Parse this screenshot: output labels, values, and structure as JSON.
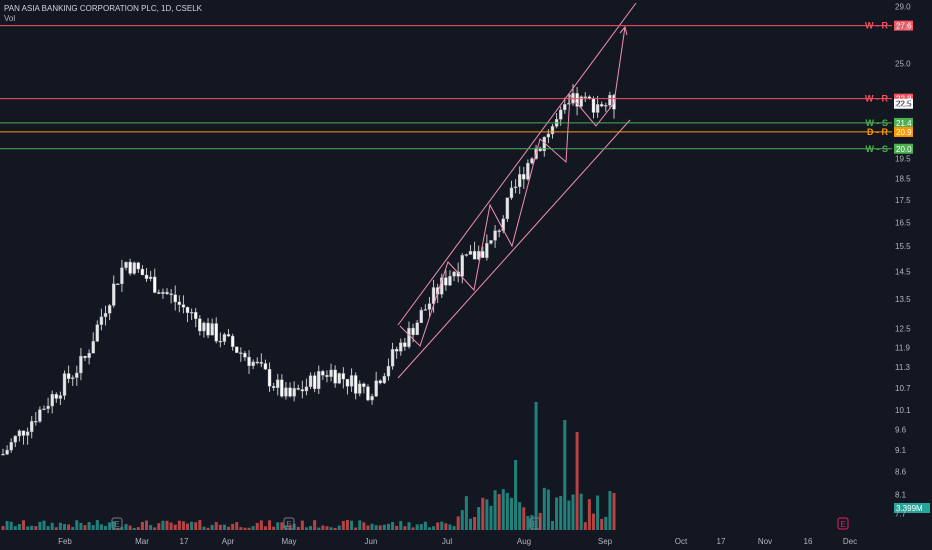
{
  "header": {
    "symbol_line": "PAN ASIA BANKING CORPORATION PLC, 1D, CSELK",
    "volume_label": "Vol"
  },
  "colors": {
    "background": "#131722",
    "up_candle": "#e6e6e6",
    "down_candle": "#ffffff",
    "volume_up": "#26a69a",
    "volume_down": "#ef5350",
    "resistance": "#f7525f",
    "support": "#4caf50",
    "daily_resistance": "#ff9800",
    "channel": "#f48fb1",
    "earnings_marker": "#787b86",
    "earnings_marker_upcoming": "#e91e63"
  },
  "chart_data": {
    "type": "candlestick",
    "price_axis": {
      "scale": "log",
      "ticks": [
        "29.0",
        "27.5",
        "25.0",
        "22.5",
        "19.5",
        "18.5",
        "17.5",
        "16.5",
        "15.5",
        "14.5",
        "13.5",
        "12.5",
        "11.9",
        "11.3",
        "10.7",
        "10.1",
        "9.6",
        "9.1",
        "8.6",
        "8.1",
        "7.7"
      ]
    },
    "time_axis": {
      "ticks": [
        "Feb",
        "Mar",
        "17",
        "Apr",
        "May",
        "Jun",
        "Jul",
        "Aug",
        "Sep",
        "Oct",
        "17",
        "Nov",
        "16",
        "Dec"
      ]
    },
    "levels": [
      {
        "label": "W - R",
        "value": 27.6,
        "tag": "27.6",
        "kind": "resistance"
      },
      {
        "label": "W - R",
        "value": 22.8,
        "tag": "22.8",
        "kind": "resistance"
      },
      {
        "label": "W - S",
        "value": 21.4,
        "tag": "21.4",
        "kind": "support"
      },
      {
        "label": "D - R",
        "value": 20.9,
        "tag": "20.9",
        "kind": "daily_resistance"
      },
      {
        "label": "W - S",
        "value": 20.0,
        "tag": "20.0",
        "kind": "support"
      }
    ],
    "last_price": "22.5",
    "volume_last": "3.399M",
    "earnings_markers": [
      "E",
      "E",
      "E",
      "E"
    ],
    "price_path": [
      {
        "month": "Jan-end",
        "close": 9.0
      },
      {
        "month": "Feb",
        "close": 10.2
      },
      {
        "month": "Feb-mid",
        "close": 11.5
      },
      {
        "month": "Mar",
        "close": 14.9
      },
      {
        "month": "Mar-mid",
        "close": 13.7
      },
      {
        "month": "Apr",
        "close": 12.5
      },
      {
        "month": "Apr-mid",
        "close": 11.6
      },
      {
        "month": "May",
        "close": 10.4
      },
      {
        "month": "May-mid",
        "close": 11.2
      },
      {
        "month": "Jun",
        "close": 10.6
      },
      {
        "month": "Jun-mid",
        "close": 12.4
      },
      {
        "month": "Jul",
        "close": 14.5
      },
      {
        "month": "Jul-mid",
        "close": 15.6
      },
      {
        "month": "Aug",
        "close": 19.8
      },
      {
        "month": "Aug-mid",
        "close": 22.6
      },
      {
        "month": "Sep",
        "close": 22.5
      }
    ]
  }
}
